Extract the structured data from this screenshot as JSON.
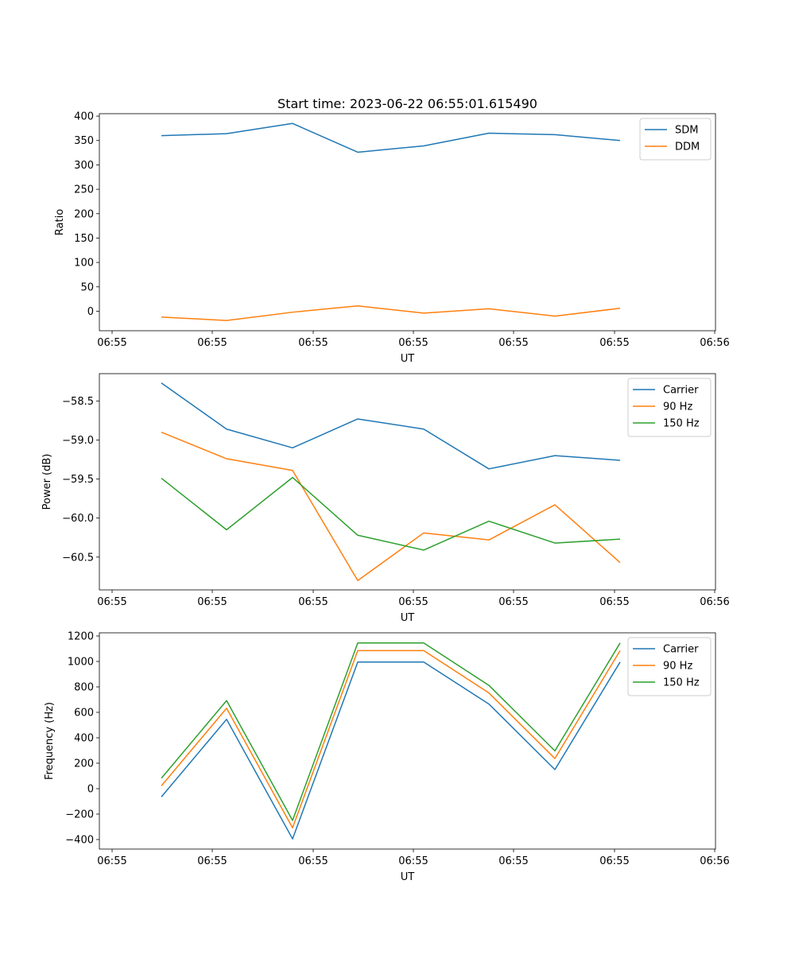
{
  "chart_data": [
    {
      "type": "line",
      "title": "Start time: 2023-06-22 06:55:01.615490",
      "xlabel": "UT",
      "ylabel": "Ratio",
      "x_tick_labels": [
        "06:55",
        "06:55",
        "06:55",
        "06:55",
        "06:55",
        "06:55",
        "06:56"
      ],
      "y_ticks": [
        0,
        50,
        100,
        150,
        200,
        250,
        300,
        350,
        400
      ],
      "y_tick_labels": [
        "0",
        "50",
        "100",
        "150",
        "200",
        "250",
        "300",
        "350",
        "400"
      ],
      "ylim": [
        -40,
        405
      ],
      "legend_position": "top-right",
      "series": [
        {
          "name": "SDM",
          "color": "#1f77b4",
          "values": [
            360,
            364,
            385,
            326,
            339,
            365,
            362,
            350
          ]
        },
        {
          "name": "DDM",
          "color": "#ff7f0e",
          "values": [
            -12,
            -19,
            -2,
            11,
            -4,
            5,
            -10,
            6
          ]
        }
      ]
    },
    {
      "type": "line",
      "title": "",
      "xlabel": "UT",
      "ylabel": "Power (dB)",
      "x_tick_labels": [
        "06:55",
        "06:55",
        "06:55",
        "06:55",
        "06:55",
        "06:55",
        "06:56"
      ],
      "y_ticks": [
        -58.5,
        -59.0,
        -59.5,
        -60.0,
        -60.5
      ],
      "y_tick_labels": [
        "−58.5",
        "−59.0",
        "−59.5",
        "−60.0",
        "−60.5"
      ],
      "ylim": [
        -60.92,
        -58.15
      ],
      "legend_position": "top-right",
      "series": [
        {
          "name": "Carrier",
          "color": "#1f77b4",
          "values": [
            -58.27,
            -58.86,
            -59.1,
            -58.73,
            -58.86,
            -59.37,
            -59.2,
            -59.26
          ]
        },
        {
          "name": "90 Hz",
          "color": "#ff7f0e",
          "values": [
            -58.9,
            -59.24,
            -59.39,
            -60.8,
            -60.19,
            -60.28,
            -59.83,
            -60.57
          ]
        },
        {
          "name": "150 Hz",
          "color": "#2ca02c",
          "values": [
            -59.49,
            -60.15,
            -59.48,
            -60.22,
            -60.41,
            -60.04,
            -60.32,
            -60.27
          ]
        }
      ]
    },
    {
      "type": "line",
      "title": "",
      "xlabel": "UT",
      "ylabel": "Frequency (Hz)",
      "x_tick_labels": [
        "06:55",
        "06:55",
        "06:55",
        "06:55",
        "06:55",
        "06:55",
        "06:56"
      ],
      "y_ticks": [
        -400,
        -200,
        0,
        200,
        400,
        600,
        800,
        1000,
        1200
      ],
      "y_tick_labels": [
        "−400",
        "−200",
        "0",
        "200",
        "400",
        "600",
        "800",
        "1000",
        "1200"
      ],
      "ylim": [
        -475,
        1225
      ],
      "legend_position": "top-right",
      "series": [
        {
          "name": "Carrier",
          "color": "#1f77b4",
          "values": [
            -65,
            545,
            -395,
            995,
            995,
            665,
            150,
            995
          ]
        },
        {
          "name": "90 Hz",
          "color": "#ff7f0e",
          "values": [
            22,
            632,
            -308,
            1085,
            1085,
            752,
            237,
            1085
          ]
        },
        {
          "name": "150 Hz",
          "color": "#2ca02c",
          "values": [
            82,
            692,
            -250,
            1145,
            1145,
            812,
            297,
            1145
          ]
        }
      ]
    }
  ]
}
